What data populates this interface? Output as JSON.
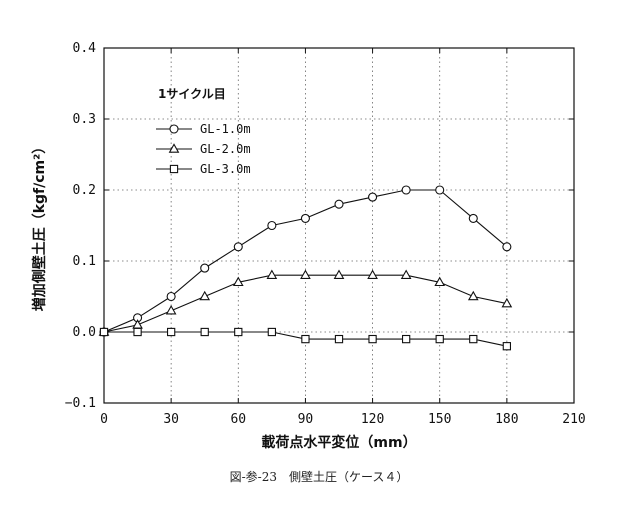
{
  "chart_data": {
    "type": "line",
    "xlabel": "載荷点水平変位（mm）",
    "ylabel": "増加側壁土圧（kgf/cm²）",
    "xlim": [
      0,
      210
    ],
    "ylim": [
      -0.1,
      0.4
    ],
    "x_ticks": [
      0,
      30,
      60,
      90,
      120,
      150,
      180,
      210
    ],
    "y_ticks": [
      -0.1,
      0.0,
      0.1,
      0.2,
      0.3,
      0.4
    ],
    "x_tick_labels": [
      "0",
      "30",
      "60",
      "90",
      "120",
      "150",
      "180",
      "210"
    ],
    "y_tick_labels": [
      "−0.1",
      "0.0",
      "0.1",
      "0.2",
      "0.3",
      "0.4"
    ],
    "grid": true,
    "legend_title": "1サイクル目",
    "legend_position": "top-left",
    "series": [
      {
        "name": "GL-1.0m",
        "marker": "circle",
        "x": [
          0,
          15,
          30,
          45,
          60,
          75,
          90,
          105,
          120,
          135,
          150,
          165,
          180
        ],
        "y": [
          0.0,
          0.02,
          0.05,
          0.09,
          0.12,
          0.15,
          0.16,
          0.18,
          0.19,
          0.2,
          0.2,
          0.16,
          0.12
        ]
      },
      {
        "name": "GL-2.0m",
        "marker": "triangle",
        "x": [
          0,
          15,
          30,
          45,
          60,
          75,
          90,
          105,
          120,
          135,
          150,
          165,
          180
        ],
        "y": [
          0.0,
          0.01,
          0.03,
          0.05,
          0.07,
          0.08,
          0.08,
          0.08,
          0.08,
          0.08,
          0.07,
          0.05,
          0.04
        ]
      },
      {
        "name": "GL-3.0m",
        "marker": "square",
        "x": [
          0,
          15,
          30,
          45,
          60,
          75,
          90,
          105,
          120,
          135,
          150,
          165,
          180
        ],
        "y": [
          0.0,
          0.0,
          0.0,
          0.0,
          0.0,
          0.0,
          -0.01,
          -0.01,
          -0.01,
          -0.01,
          -0.01,
          -0.01,
          -0.02
        ]
      }
    ]
  },
  "caption": "図-参-23　側壁土圧（ケース４）"
}
